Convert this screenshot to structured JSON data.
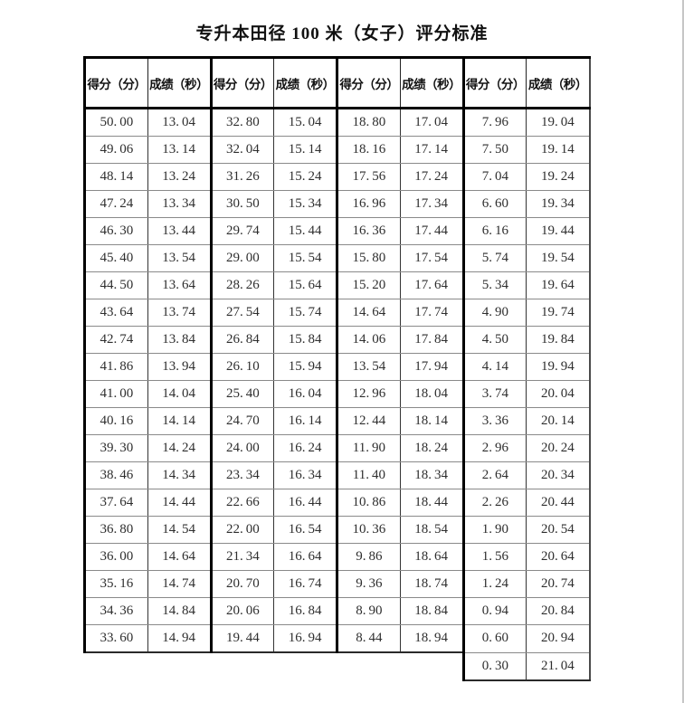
{
  "title": "专升本田径 100 米（女子）评分标准",
  "table": {
    "header": {
      "score_label": "得分（分）",
      "result_label": "成绩（秒）"
    },
    "pairs": [
      {
        "rows": [
          [
            "50.00",
            "13.04"
          ],
          [
            "49.06",
            "13.14"
          ],
          [
            "48.14",
            "13.24"
          ],
          [
            "47.24",
            "13.34"
          ],
          [
            "46.30",
            "13.44"
          ],
          [
            "45.40",
            "13.54"
          ],
          [
            "44.50",
            "13.64"
          ],
          [
            "43.64",
            "13.74"
          ],
          [
            "42.74",
            "13.84"
          ],
          [
            "41.86",
            "13.94"
          ],
          [
            "41.00",
            "14.04"
          ],
          [
            "40.16",
            "14.14"
          ],
          [
            "39.30",
            "14.24"
          ],
          [
            "38.46",
            "14.34"
          ],
          [
            "37.64",
            "14.44"
          ],
          [
            "36.80",
            "14.54"
          ],
          [
            "36.00",
            "14.64"
          ],
          [
            "35.16",
            "14.74"
          ],
          [
            "34.36",
            "14.84"
          ],
          [
            "33.60",
            "14.94"
          ]
        ]
      },
      {
        "rows": [
          [
            "32.80",
            "15.04"
          ],
          [
            "32.04",
            "15.14"
          ],
          [
            "31.26",
            "15.24"
          ],
          [
            "30.50",
            "15.34"
          ],
          [
            "29.74",
            "15.44"
          ],
          [
            "29.00",
            "15.54"
          ],
          [
            "28.26",
            "15.64"
          ],
          [
            "27.54",
            "15.74"
          ],
          [
            "26.84",
            "15.84"
          ],
          [
            "26.10",
            "15.94"
          ],
          [
            "25.40",
            "16.04"
          ],
          [
            "24.70",
            "16.14"
          ],
          [
            "24.00",
            "16.24"
          ],
          [
            "23.34",
            "16.34"
          ],
          [
            "22.66",
            "16.44"
          ],
          [
            "22.00",
            "16.54"
          ],
          [
            "21.34",
            "16.64"
          ],
          [
            "20.70",
            "16.74"
          ],
          [
            "20.06",
            "16.84"
          ],
          [
            "19.44",
            "16.94"
          ]
        ]
      },
      {
        "rows": [
          [
            "18.80",
            "17.04"
          ],
          [
            "18.16",
            "17.14"
          ],
          [
            "17.56",
            "17.24"
          ],
          [
            "16.96",
            "17.34"
          ],
          [
            "16.36",
            "17.44"
          ],
          [
            "15.80",
            "17.54"
          ],
          [
            "15.20",
            "17.64"
          ],
          [
            "14.64",
            "17.74"
          ],
          [
            "14.06",
            "17.84"
          ],
          [
            "13.54",
            "17.94"
          ],
          [
            "12.96",
            "18.04"
          ],
          [
            "12.44",
            "18.14"
          ],
          [
            "11.90",
            "18.24"
          ],
          [
            "11.40",
            "18.34"
          ],
          [
            "10.86",
            "18.44"
          ],
          [
            "10.36",
            "18.54"
          ],
          [
            "9.86",
            "18.64"
          ],
          [
            "9.36",
            "18.74"
          ],
          [
            "8.90",
            "18.84"
          ],
          [
            "8.44",
            "18.94"
          ]
        ]
      },
      {
        "rows": [
          [
            "7.96",
            "19.04"
          ],
          [
            "7.50",
            "19.14"
          ],
          [
            "7.04",
            "19.24"
          ],
          [
            "6.60",
            "19.34"
          ],
          [
            "6.16",
            "19.44"
          ],
          [
            "5.74",
            "19.54"
          ],
          [
            "5.34",
            "19.64"
          ],
          [
            "4.90",
            "19.74"
          ],
          [
            "4.50",
            "19.84"
          ],
          [
            "4.14",
            "19.94"
          ],
          [
            "3.74",
            "20.04"
          ],
          [
            "3.36",
            "20.14"
          ],
          [
            "2.96",
            "20.24"
          ],
          [
            "2.64",
            "20.34"
          ],
          [
            "2.26",
            "20.44"
          ],
          [
            "1.90",
            "20.54"
          ],
          [
            "1.56",
            "20.64"
          ],
          [
            "1.24",
            "20.74"
          ],
          [
            "0.94",
            "20.84"
          ],
          [
            "0.60",
            "20.94"
          ],
          [
            "0.30",
            "21.04"
          ]
        ]
      }
    ]
  }
}
